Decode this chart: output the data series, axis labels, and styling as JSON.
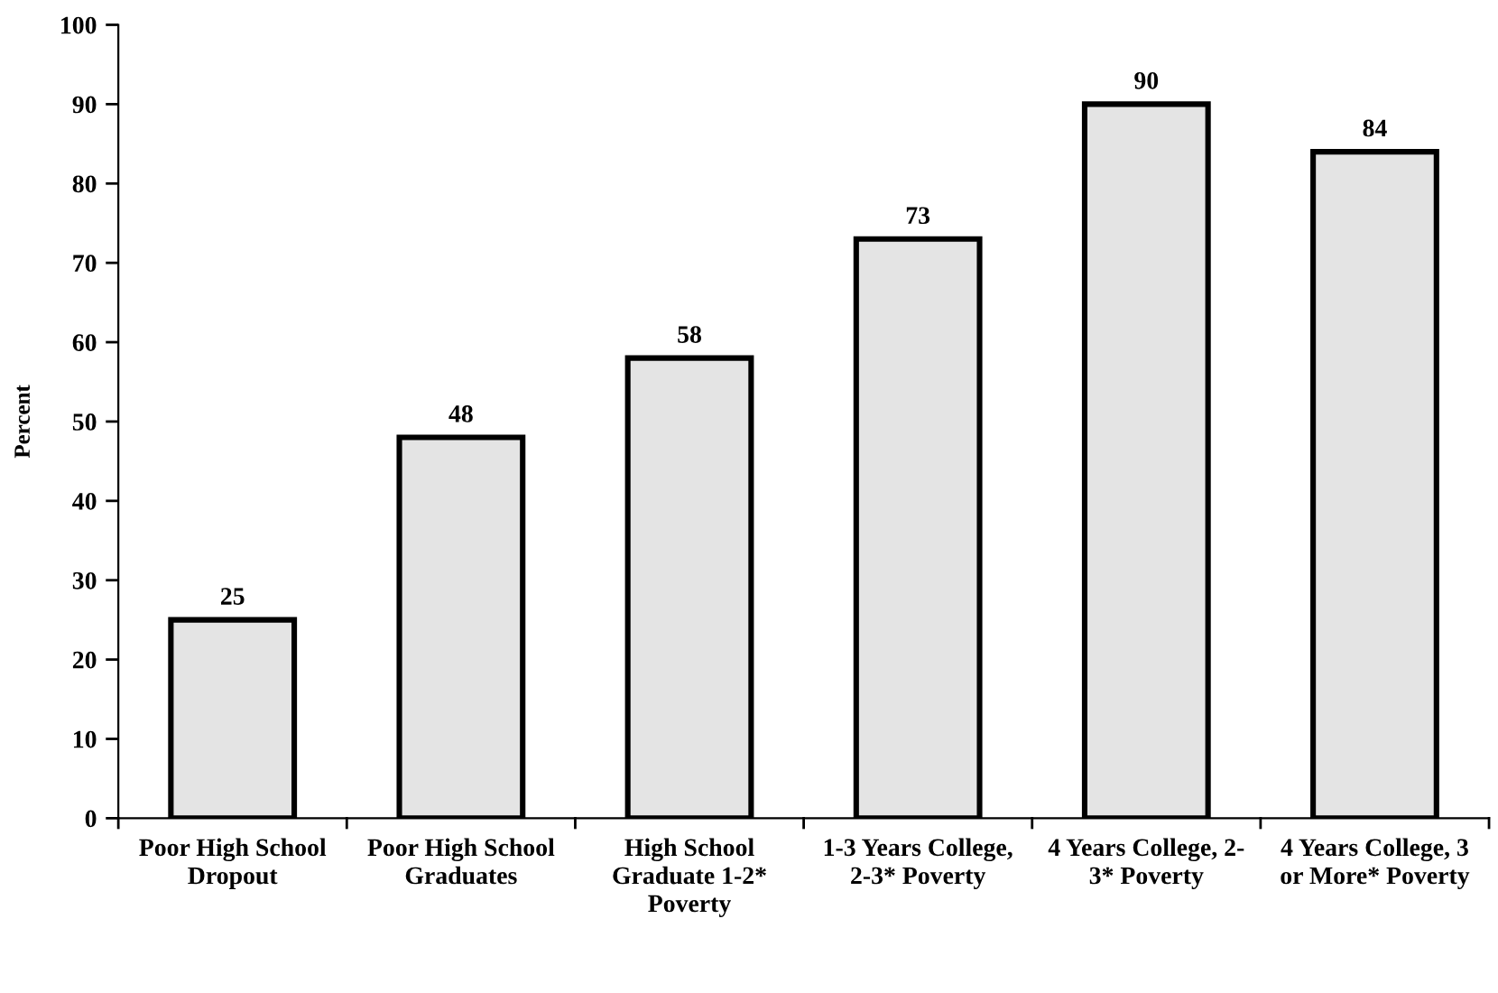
{
  "chart_data": {
    "type": "bar",
    "ylabel": "Percent",
    "categories": [
      "Poor High School\nDropout",
      "Poor High School\nGraduates",
      "High School\nGraduate 1-2*\nPoverty",
      "1-3 Years College,\n2-3* Poverty",
      "4 Years College, 2-\n3* Poverty",
      "4 Years College, 3\nor More* Poverty"
    ],
    "values": [
      25,
      48,
      58,
      73,
      90,
      84
    ],
    "color": "#e4e4e4",
    "ylim": [
      0,
      100
    ],
    "yticks": [
      0,
      10,
      20,
      30,
      40,
      50,
      60,
      70,
      80,
      90,
      100
    ],
    "data_labels": true,
    "grid": false,
    "legend": false
  }
}
